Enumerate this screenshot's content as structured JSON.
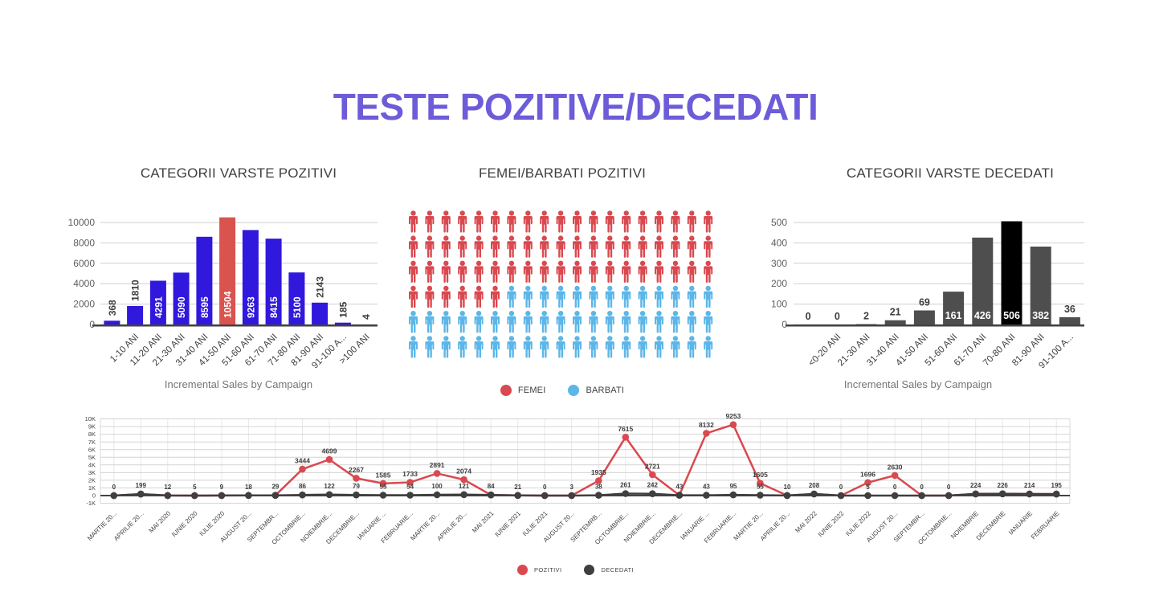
{
  "page": {
    "title": "TESTE POZITIVE/DECEDATI",
    "title_color": "#6c5cd9",
    "background": "#ffffff"
  },
  "chart_data": [
    {
      "id": "age_positive",
      "type": "bar",
      "title": "CATEGORII VARSTE POZITIVI",
      "subtitle": "Incremental Sales by Campaign",
      "categories": [
        "",
        "1-10 ANI",
        "11-20 ANI",
        "21-30 ANI",
        "31-40 ANI",
        "41-50 ANI",
        "51-60 ANI",
        "61-70 ANI",
        "71-80 ANI",
        "81-90 ANI",
        "91-100 A...",
        ">100 ANI"
      ],
      "values": [
        368,
        1810,
        4291,
        5090,
        8595,
        10504,
        9263,
        8415,
        5100,
        2143,
        185,
        4
      ],
      "bar_color": "#3118dd",
      "highlight_index": 5,
      "highlight_color": "#d9534f",
      "y_ticks": [
        0,
        2000,
        4000,
        6000,
        8000,
        10000
      ],
      "ylim": [
        0,
        10000
      ],
      "inside_label_min": 4000,
      "grid": true,
      "legend_position": "none"
    },
    {
      "id": "gender_positive",
      "type": "pictogram",
      "title": "FEMEI/BARBATI POZITIVI",
      "rows": 6,
      "cols": 19,
      "red_counts_per_row": [
        19,
        19,
        19,
        6,
        0,
        0
      ],
      "femei_icons": 63,
      "barbati_icons": 51,
      "legend": [
        {
          "label": "FEMEI",
          "color": "#d9494f"
        },
        {
          "label": "BARBATI",
          "color": "#5cb6e8"
        }
      ],
      "legend_position": "bottom"
    },
    {
      "id": "age_deceased",
      "type": "bar",
      "title": "CATEGORII VARSTE DECEDATI",
      "subtitle": "Incremental Sales by Campaign",
      "categories": [
        "",
        "<0-20 ANI",
        "21-30 ANI",
        "31-40 ANI",
        "41-50 ANI",
        "51-60 ANI",
        "61-70 ANI",
        "70-80 ANI",
        "81-90 ANI",
        "91-100 A..."
      ],
      "values": [
        0,
        0,
        2,
        21,
        69,
        161,
        426,
        506,
        382,
        36
      ],
      "bar_color": "#4e4e4e",
      "highlight_index": 7,
      "highlight_color": "#000000",
      "y_ticks": [
        0,
        100,
        200,
        300,
        400,
        500
      ],
      "ylim": [
        0,
        500
      ],
      "inside_label_min": 100,
      "grid": true,
      "legend_position": "none"
    },
    {
      "id": "timeline",
      "type": "line",
      "categories": [
        "MARTIE 20...",
        "APRILIE 20...",
        "MAI 2020",
        "IUNIE 2020",
        "IULIE 2020",
        "AUGUST 20...",
        "SEPTEMBR...",
        "OCTOMBRIE...",
        "NOIEMBRIE...",
        "DECEMBRIE...",
        "IANUARIE ...",
        "FEBRUARIE...",
        "MARTIE 20...",
        "APRILIE 20...",
        "MAI 2021",
        "IUNIE 2021",
        "IULIE 2021",
        "AUGUST 20...",
        "SEPTEMRB...",
        "OCTOMBRIE...",
        "NOIEMBRIE...",
        "DECEMBRIE...",
        "IANUARIE ...",
        "FEBRUARIE...",
        "MARTIE 20...",
        "APRILIE 20...",
        "MAI 2022",
        "IUNIE 2022",
        "IULIE 2022",
        "AUGUST 20...",
        "SEPTEMBR...",
        "OCTOMBRIE...",
        "NOIEMBRIE",
        "DECEMBRIE",
        "IANUARIE",
        "FEBRUARIE"
      ],
      "series": [
        {
          "name": "POZITIVI",
          "color": "#d9494f",
          "values": [
            0,
            199,
            12,
            5,
            9,
            18,
            29,
            3444,
            4699,
            2267,
            1585,
            1733,
            2891,
            2074,
            84,
            21,
            0,
            3,
            1935,
            7615,
            2721,
            43,
            8132,
            9253,
            1605,
            10,
            208,
            0,
            1696,
            2630,
            0,
            0,
            224,
            226,
            214,
            195
          ]
        },
        {
          "name": "DECEDATI",
          "color": "#3f3f3f",
          "values": [
            0,
            199,
            12,
            5,
            9,
            18,
            29,
            86,
            122,
            79,
            55,
            54,
            100,
            121,
            84,
            21,
            0,
            3,
            38,
            261,
            242,
            43,
            43,
            95,
            55,
            10,
            208,
            0,
            5,
            0,
            0,
            0,
            224,
            226,
            214,
            195
          ]
        }
      ],
      "peak_label_min": 1000,
      "y_ticks": [
        "10K",
        "9K",
        "8K",
        "7K",
        "6K",
        "5K",
        "4K",
        "3K",
        "2K",
        "1K",
        "0",
        "-1K"
      ],
      "y_tick_values": [
        10000,
        9000,
        8000,
        7000,
        6000,
        5000,
        4000,
        3000,
        2000,
        1000,
        0,
        -1000
      ],
      "ylim": [
        -1000,
        10000
      ],
      "grid": true,
      "legend": [
        {
          "label": "POZITIVI",
          "color": "#d9494f"
        },
        {
          "label": "DECEDATI",
          "color": "#3f3f3f"
        }
      ],
      "legend_position": "bottom"
    }
  ]
}
